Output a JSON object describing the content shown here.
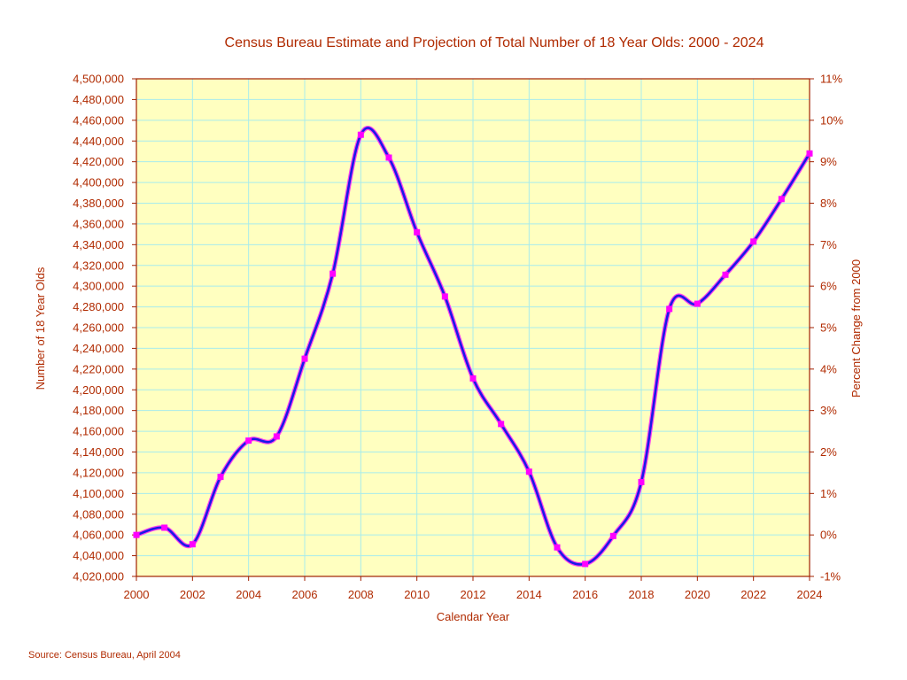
{
  "chart_data": {
    "type": "line",
    "title": "Census Bureau Estimate and Projection of Total Number of 18 Year Olds: 2000 - 2024",
    "xlabel": "Calendar Year",
    "ylabel": "Number of 18 Year Olds",
    "y2label": "Percent Change from 2000",
    "source": "Source: Census Bureau, April 2004",
    "xlim": [
      2000,
      2024
    ],
    "ylim": [
      4020000,
      4500000
    ],
    "y2lim": [
      -1,
      11
    ],
    "grid": true,
    "legend": "none",
    "x_ticks": [
      "2000",
      "2002",
      "2004",
      "2006",
      "2008",
      "2010",
      "2012",
      "2014",
      "2016",
      "2018",
      "2020",
      "2022",
      "2024"
    ],
    "y_ticks": [
      "4,020,000",
      "4,040,000",
      "4,060,000",
      "4,080,000",
      "4,100,000",
      "4,120,000",
      "4,140,000",
      "4,160,000",
      "4,180,000",
      "4,200,000",
      "4,220,000",
      "4,240,000",
      "4,260,000",
      "4,280,000",
      "4,300,000",
      "4,320,000",
      "4,340,000",
      "4,360,000",
      "4,380,000",
      "4,400,000",
      "4,420,000",
      "4,440,000",
      "4,460,000",
      "4,480,000",
      "4,500,000"
    ],
    "y2_ticks": [
      "-1%",
      "0%",
      "1%",
      "2%",
      "3%",
      "4%",
      "5%",
      "6%",
      "7%",
      "8%",
      "9%",
      "10%",
      "11%"
    ],
    "x": [
      2000,
      2001,
      2002,
      2003,
      2004,
      2005,
      2006,
      2007,
      2008,
      2009,
      2010,
      2011,
      2012,
      2013,
      2014,
      2015,
      2016,
      2017,
      2018,
      2019,
      2020,
      2021,
      2022,
      2023,
      2024
    ],
    "series": [
      {
        "values": [
          4060000,
          4067000,
          4051000,
          4116000,
          4151000,
          4155000,
          4230000,
          4312000,
          4446000,
          4424000,
          4352000,
          4290000,
          4211000,
          4167000,
          4121000,
          4048000,
          4032000,
          4059000,
          4111000,
          4278000,
          4283000,
          4311000,
          4343000,
          4384000,
          4428000
        ],
        "line_color": "#1a1ae6",
        "marker_color": "#ff00ff"
      }
    ],
    "colors": {
      "plot_bg": "#ffffc0",
      "grid": "#a8ecec",
      "axes": "#a02000",
      "text": "#b02a00"
    }
  }
}
